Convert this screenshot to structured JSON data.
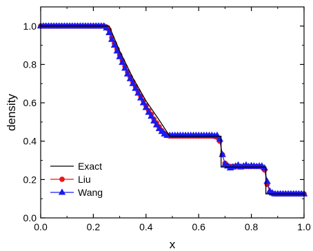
{
  "chart_data": {
    "type": "line",
    "title": "",
    "xlabel": "x",
    "ylabel": "density",
    "xlim": [
      0.0,
      1.0
    ],
    "ylim": [
      0.0,
      1.1
    ],
    "x_ticks": [
      0.0,
      0.2,
      0.4,
      0.6,
      0.8,
      1.0
    ],
    "x_tick_labels": [
      "0.0",
      "0.2",
      "0.4",
      "0.6",
      "0.8",
      "1.0"
    ],
    "y_ticks": [
      0.0,
      0.2,
      0.4,
      0.6,
      0.8,
      1.0
    ],
    "y_tick_labels": [
      "0.0",
      "0.2",
      "0.4",
      "0.6",
      "0.8",
      "1.0"
    ],
    "grid": false,
    "legend_position": "bottom-left",
    "series": [
      {
        "name": "Exact",
        "color": "#000000",
        "marker": "none",
        "x": [
          0.0,
          0.26,
          0.3,
          0.35,
          0.4,
          0.45,
          0.49,
          0.685,
          0.685,
          0.855,
          0.855,
          1.0
        ],
        "y": [
          1.0,
          1.0,
          0.87,
          0.73,
          0.61,
          0.51,
          0.426,
          0.426,
          0.265,
          0.265,
          0.125,
          0.125
        ]
      },
      {
        "name": "Liu",
        "color": "#e8161b",
        "marker": "circle",
        "x": [
          0.0,
          0.01,
          0.02,
          0.03,
          0.04,
          0.05,
          0.06,
          0.07,
          0.08,
          0.09,
          0.1,
          0.11,
          0.12,
          0.13,
          0.14,
          0.15,
          0.16,
          0.17,
          0.18,
          0.19,
          0.2,
          0.21,
          0.22,
          0.23,
          0.24,
          0.25,
          0.26,
          0.27,
          0.28,
          0.29,
          0.3,
          0.31,
          0.32,
          0.33,
          0.34,
          0.35,
          0.36,
          0.37,
          0.38,
          0.39,
          0.4,
          0.41,
          0.42,
          0.43,
          0.44,
          0.45,
          0.46,
          0.47,
          0.48,
          0.49,
          0.5,
          0.51,
          0.52,
          0.53,
          0.54,
          0.55,
          0.56,
          0.57,
          0.58,
          0.59,
          0.6,
          0.61,
          0.62,
          0.63,
          0.64,
          0.65,
          0.66,
          0.67,
          0.68,
          0.69,
          0.7,
          0.71,
          0.72,
          0.73,
          0.74,
          0.75,
          0.76,
          0.77,
          0.78,
          0.79,
          0.8,
          0.81,
          0.82,
          0.83,
          0.84,
          0.85,
          0.86,
          0.87,
          0.88,
          0.89,
          0.9,
          0.91,
          0.92,
          0.93,
          0.94,
          0.95,
          0.96,
          0.97,
          0.98,
          0.99,
          1.0
        ],
        "y": [
          1.0,
          1.0,
          1.0,
          1.0,
          1.0,
          1.0,
          1.0,
          1.0,
          1.0,
          1.0,
          1.0,
          1.0,
          1.0,
          1.0,
          1.0,
          1.0,
          1.0,
          1.0,
          1.0,
          1.0,
          1.0,
          1.0,
          1.0,
          1.0,
          1.0,
          0.995,
          0.98,
          0.94,
          0.91,
          0.88,
          0.85,
          0.82,
          0.79,
          0.76,
          0.735,
          0.71,
          0.685,
          0.66,
          0.635,
          0.61,
          0.585,
          0.56,
          0.54,
          0.515,
          0.495,
          0.475,
          0.455,
          0.44,
          0.43,
          0.427,
          0.427,
          0.427,
          0.427,
          0.427,
          0.427,
          0.427,
          0.427,
          0.427,
          0.427,
          0.427,
          0.427,
          0.427,
          0.427,
          0.427,
          0.427,
          0.427,
          0.425,
          0.42,
          0.4,
          0.33,
          0.285,
          0.272,
          0.268,
          0.268,
          0.268,
          0.268,
          0.268,
          0.268,
          0.268,
          0.268,
          0.268,
          0.268,
          0.268,
          0.268,
          0.265,
          0.25,
          0.175,
          0.135,
          0.127,
          0.125,
          0.125,
          0.125,
          0.125,
          0.125,
          0.125,
          0.125,
          0.125,
          0.125,
          0.125,
          0.125,
          0.125
        ]
      },
      {
        "name": "Wang",
        "color": "#1a1aef",
        "marker": "triangle",
        "x": [
          0.0,
          0.01,
          0.02,
          0.03,
          0.04,
          0.05,
          0.06,
          0.07,
          0.08,
          0.09,
          0.1,
          0.11,
          0.12,
          0.13,
          0.14,
          0.15,
          0.16,
          0.17,
          0.18,
          0.19,
          0.2,
          0.21,
          0.22,
          0.23,
          0.24,
          0.25,
          0.26,
          0.27,
          0.28,
          0.29,
          0.3,
          0.31,
          0.32,
          0.33,
          0.34,
          0.35,
          0.36,
          0.37,
          0.38,
          0.39,
          0.4,
          0.41,
          0.42,
          0.43,
          0.44,
          0.45,
          0.46,
          0.47,
          0.48,
          0.49,
          0.5,
          0.51,
          0.52,
          0.53,
          0.54,
          0.55,
          0.56,
          0.57,
          0.58,
          0.59,
          0.6,
          0.61,
          0.62,
          0.63,
          0.64,
          0.65,
          0.66,
          0.67,
          0.68,
          0.69,
          0.7,
          0.71,
          0.72,
          0.73,
          0.74,
          0.75,
          0.76,
          0.77,
          0.78,
          0.79,
          0.8,
          0.81,
          0.82,
          0.83,
          0.84,
          0.85,
          0.86,
          0.87,
          0.88,
          0.89,
          0.9,
          0.91,
          0.92,
          0.93,
          0.94,
          0.95,
          0.96,
          0.97,
          0.98,
          0.99,
          1.0
        ],
        "y": [
          1.0,
          1.0,
          1.0,
          1.0,
          1.0,
          1.0,
          1.0,
          1.0,
          1.0,
          1.0,
          1.0,
          1.0,
          1.0,
          1.0,
          1.0,
          1.0,
          1.0,
          1.0,
          1.0,
          1.0,
          1.0,
          1.0,
          1.0,
          1.0,
          1.0,
          0.99,
          0.965,
          0.93,
          0.9,
          0.87,
          0.84,
          0.81,
          0.78,
          0.75,
          0.725,
          0.7,
          0.675,
          0.65,
          0.625,
          0.6,
          0.575,
          0.55,
          0.53,
          0.505,
          0.485,
          0.465,
          0.45,
          0.437,
          0.43,
          0.43,
          0.43,
          0.43,
          0.43,
          0.43,
          0.43,
          0.43,
          0.43,
          0.43,
          0.43,
          0.43,
          0.43,
          0.43,
          0.43,
          0.43,
          0.43,
          0.43,
          0.428,
          0.43,
          0.41,
          0.33,
          0.28,
          0.27,
          0.26,
          0.265,
          0.27,
          0.275,
          0.265,
          0.27,
          0.275,
          0.268,
          0.272,
          0.27,
          0.268,
          0.27,
          0.27,
          0.26,
          0.19,
          0.14,
          0.13,
          0.125,
          0.125,
          0.125,
          0.125,
          0.125,
          0.125,
          0.125,
          0.125,
          0.125,
          0.125,
          0.125,
          0.125
        ]
      }
    ]
  }
}
